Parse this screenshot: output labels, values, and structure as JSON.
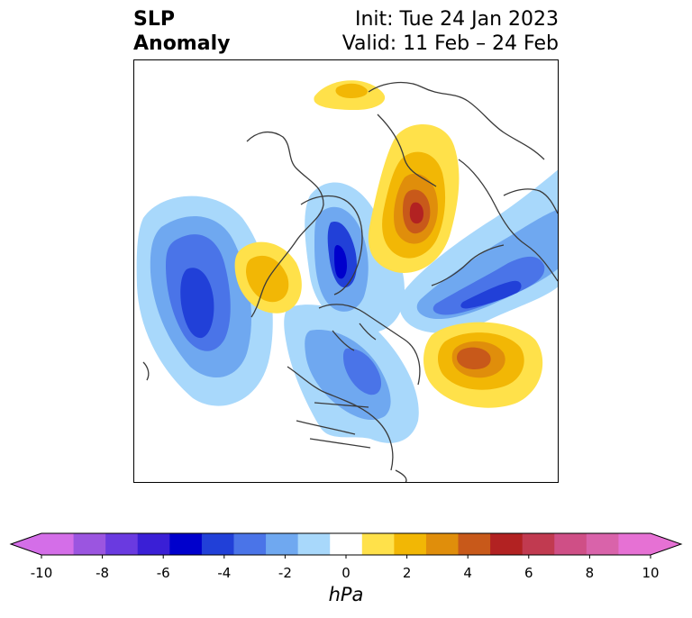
{
  "title": {
    "left_line1": "SLP",
    "left_line2": "Anomaly",
    "right_line1": "Init: Tue 24 Jan 2023",
    "right_line2": "Valid: 11 Feb – 24 Feb"
  },
  "colorbar": {
    "unit": "hPa",
    "tick_labels": [
      "-10",
      "-8",
      "-6",
      "-4",
      "-2",
      "0",
      "2",
      "4",
      "6",
      "8",
      "10"
    ],
    "levels": [
      -10,
      -9,
      -8,
      -7,
      -6,
      -5,
      -4,
      -3,
      -2,
      -1,
      1,
      2,
      3,
      4,
      5,
      6,
      7,
      8,
      9,
      10
    ],
    "colors": [
      "#d46ee8",
      "#9b55e0",
      "#6a3ae0",
      "#3a1fd6",
      "#0000cc",
      "#2140d8",
      "#4a74e8",
      "#6fa8f0",
      "#a8d8fb",
      "#ffffff",
      "#ffe14a",
      "#f2b705",
      "#e08e0b",
      "#c8591a",
      "#b22222",
      "#c13a50",
      "#cf4f86",
      "#d963aa",
      "#e671d4"
    ],
    "extend": "both"
  },
  "map": {
    "projection": "polar-stereographic",
    "colors": {
      "blue1": "#a8d8fb",
      "blue2": "#6fa8f0",
      "blue3": "#4a74e8",
      "blue4": "#2140d8",
      "blue5": "#0000cc",
      "yellow1": "#ffe14a",
      "yellow2": "#f2b705",
      "orange": "#e08e0b",
      "rust": "#c8591a",
      "red": "#b22222",
      "coast": "#3a3a3a"
    }
  }
}
